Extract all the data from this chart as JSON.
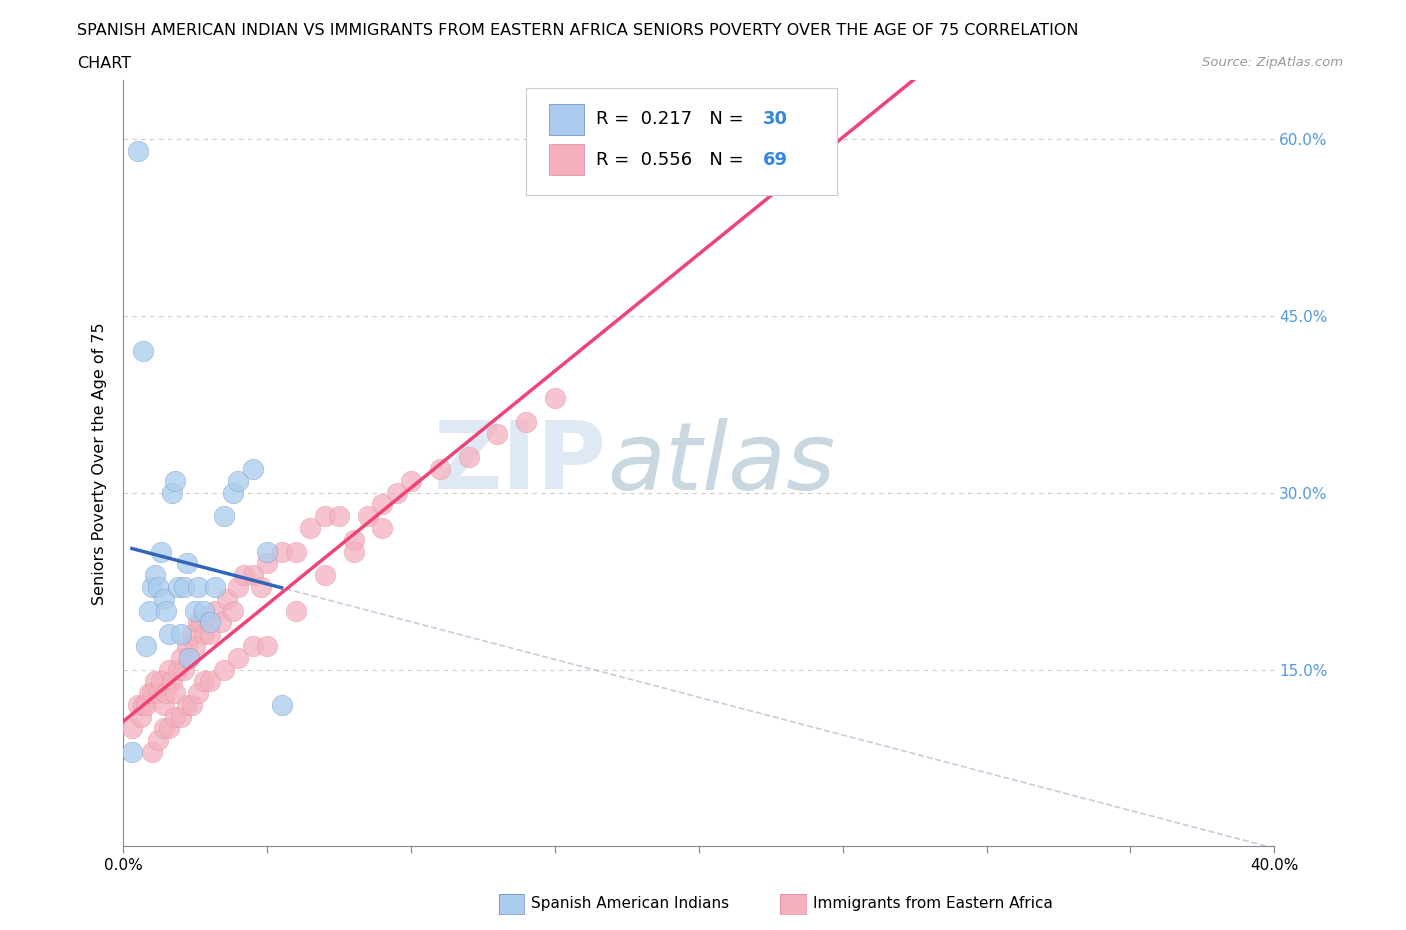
{
  "title_line1": "SPANISH AMERICAN INDIAN VS IMMIGRANTS FROM EASTERN AFRICA SENIORS POVERTY OVER THE AGE OF 75 CORRELATION",
  "title_line2": "CHART",
  "source": "Source: ZipAtlas.com",
  "ylabel": "Seniors Poverty Over the Age of 75",
  "xlim": [
    0.0,
    0.4
  ],
  "ylim": [
    0.0,
    0.65
  ],
  "ytick_positions": [
    0.0,
    0.15,
    0.3,
    0.45,
    0.6
  ],
  "ytick_labels_right": [
    "",
    "15.0%",
    "30.0%",
    "45.0%",
    "60.0%"
  ],
  "hlines": [
    0.15,
    0.3,
    0.45,
    0.6
  ],
  "R1": 0.217,
  "N1": 30,
  "R2": 0.556,
  "N2": 69,
  "color_blue": "#aaccee",
  "color_pink": "#f4b0be",
  "color_blue_line": "#3366bb",
  "color_pink_line": "#ee4477",
  "legend_label1": "Spanish American Indians",
  "legend_label2": "Immigrants from Eastern Africa",
  "blue_x": [
    0.003,
    0.005,
    0.007,
    0.008,
    0.009,
    0.01,
    0.011,
    0.012,
    0.013,
    0.014,
    0.015,
    0.016,
    0.017,
    0.018,
    0.019,
    0.02,
    0.021,
    0.022,
    0.023,
    0.025,
    0.026,
    0.028,
    0.03,
    0.032,
    0.035,
    0.038,
    0.04,
    0.045,
    0.05,
    0.055
  ],
  "blue_y": [
    0.08,
    0.59,
    0.42,
    0.17,
    0.2,
    0.22,
    0.23,
    0.22,
    0.25,
    0.21,
    0.2,
    0.18,
    0.3,
    0.31,
    0.22,
    0.18,
    0.22,
    0.24,
    0.16,
    0.2,
    0.22,
    0.2,
    0.19,
    0.22,
    0.28,
    0.3,
    0.31,
    0.32,
    0.25,
    0.12
  ],
  "pink_x": [
    0.003,
    0.005,
    0.006,
    0.007,
    0.008,
    0.009,
    0.01,
    0.011,
    0.012,
    0.013,
    0.014,
    0.015,
    0.016,
    0.017,
    0.018,
    0.019,
    0.02,
    0.021,
    0.022,
    0.023,
    0.024,
    0.025,
    0.026,
    0.027,
    0.028,
    0.03,
    0.032,
    0.034,
    0.036,
    0.038,
    0.04,
    0.042,
    0.045,
    0.048,
    0.05,
    0.055,
    0.06,
    0.065,
    0.07,
    0.075,
    0.08,
    0.085,
    0.09,
    0.095,
    0.1,
    0.11,
    0.12,
    0.13,
    0.14,
    0.15,
    0.01,
    0.012,
    0.014,
    0.016,
    0.018,
    0.02,
    0.022,
    0.024,
    0.026,
    0.028,
    0.03,
    0.035,
    0.04,
    0.045,
    0.05,
    0.06,
    0.07,
    0.08,
    0.09
  ],
  "pink_y": [
    0.1,
    0.12,
    0.11,
    0.12,
    0.12,
    0.13,
    0.13,
    0.14,
    0.13,
    0.14,
    0.12,
    0.13,
    0.15,
    0.14,
    0.13,
    0.15,
    0.16,
    0.15,
    0.17,
    0.16,
    0.18,
    0.17,
    0.19,
    0.19,
    0.18,
    0.18,
    0.2,
    0.19,
    0.21,
    0.2,
    0.22,
    0.23,
    0.23,
    0.22,
    0.24,
    0.25,
    0.25,
    0.27,
    0.28,
    0.28,
    0.26,
    0.28,
    0.29,
    0.3,
    0.31,
    0.32,
    0.33,
    0.35,
    0.36,
    0.38,
    0.08,
    0.09,
    0.1,
    0.1,
    0.11,
    0.11,
    0.12,
    0.12,
    0.13,
    0.14,
    0.14,
    0.15,
    0.16,
    0.17,
    0.17,
    0.2,
    0.23,
    0.25,
    0.27
  ]
}
